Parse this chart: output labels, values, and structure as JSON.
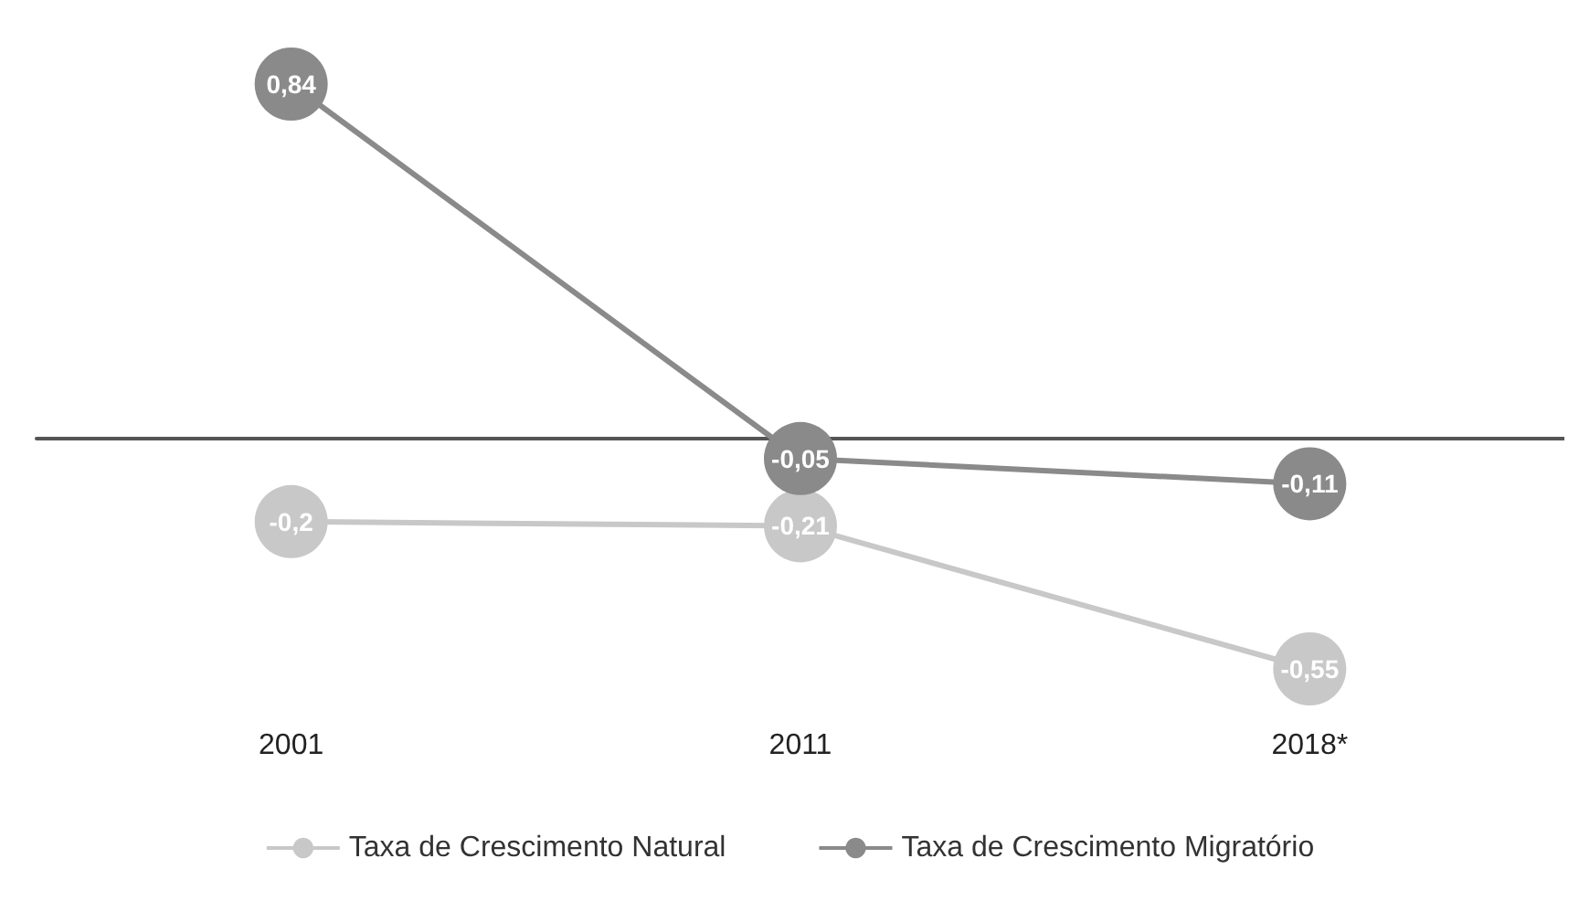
{
  "chart_data": {
    "type": "line",
    "categories": [
      "2001",
      "2011",
      "2018*"
    ],
    "series": [
      {
        "name": "Taxa de Crescimento Natural",
        "color": "#c8c8c8",
        "values": [
          -0.2,
          -0.21,
          -0.55
        ],
        "value_labels": [
          "-0,2",
          "-0,21",
          "-0,55"
        ]
      },
      {
        "name": "Taxa de Crescimento Migratório",
        "color": "#8a8a8a",
        "values": [
          0.84,
          -0.05,
          -0.11
        ],
        "value_labels": [
          "0,84",
          "-0,05",
          "-0,11"
        ]
      }
    ],
    "marker": "circle",
    "legend": "bottom",
    "grid": false
  }
}
